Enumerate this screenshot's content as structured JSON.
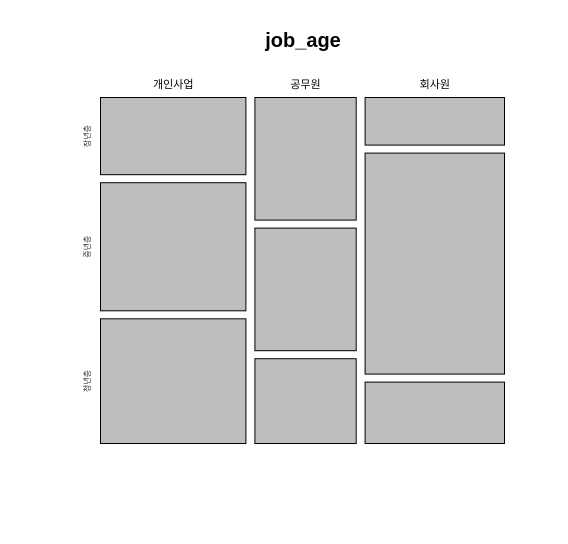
{
  "chart_data": {
    "type": "mosaic",
    "title": "job_age",
    "columns": [
      "개인사업",
      "공무원",
      "회사원"
    ],
    "rows": [
      "장년층",
      "중년층",
      "청년층"
    ],
    "column_proportions": [
      0.365,
      0.255,
      0.35
    ],
    "row_proportions_within_column": [
      [
        0.23,
        0.38,
        0.37
      ],
      [
        0.36,
        0.36,
        0.25
      ],
      [
        0.14,
        0.64,
        0.18
      ]
    ],
    "fill_color": "#bebebe",
    "border_color": "#000000"
  }
}
